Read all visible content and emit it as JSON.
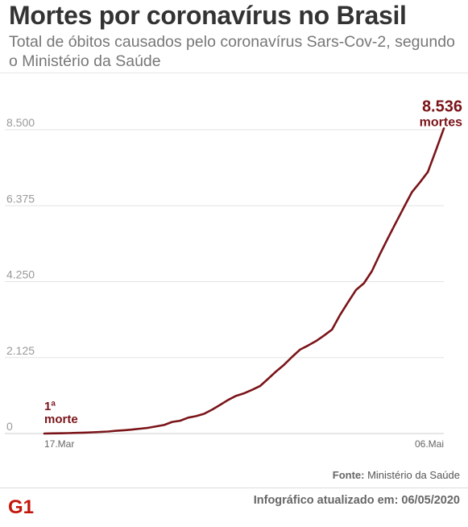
{
  "header": {
    "title": "Mortes por coronavírus no Brasil",
    "subtitle": "Total de óbitos causados pelo coronavírus Sars-Cov-2, segundo o Ministério da Saúde"
  },
  "chart_data": {
    "type": "line",
    "title": "Mortes por coronavírus no Brasil",
    "subtitle": "Total de óbitos causados pelo coronavírus Sars-Cov-2, segundo o Ministério da Saúde",
    "xlabel": "",
    "ylabel": "",
    "x_tick_labels": [
      "17.Mar",
      "06.Mai"
    ],
    "y_tick_labels": [
      "0",
      "2.125",
      "4.250",
      "6.375",
      "8.500"
    ],
    "y_ticks": [
      0,
      2125,
      4250,
      6375,
      8500
    ],
    "ylim": [
      0,
      8500
    ],
    "grid": true,
    "colors": {
      "line": "#7a1419",
      "annotation": "#7a1419"
    },
    "series": [
      {
        "x": [
          "2020-03-17",
          "2020-03-18",
          "2020-03-19",
          "2020-03-20",
          "2020-03-21",
          "2020-03-22",
          "2020-03-23",
          "2020-03-24",
          "2020-03-25",
          "2020-03-26",
          "2020-03-27",
          "2020-03-28",
          "2020-03-29",
          "2020-03-30",
          "2020-03-31",
          "2020-04-01",
          "2020-04-02",
          "2020-04-03",
          "2020-04-04",
          "2020-04-05",
          "2020-04-06",
          "2020-04-07",
          "2020-04-08",
          "2020-04-09",
          "2020-04-10",
          "2020-04-11",
          "2020-04-12",
          "2020-04-13",
          "2020-04-14",
          "2020-04-15",
          "2020-04-16",
          "2020-04-17",
          "2020-04-18",
          "2020-04-19",
          "2020-04-20",
          "2020-04-21",
          "2020-04-22",
          "2020-04-23",
          "2020-04-24",
          "2020-04-25",
          "2020-04-26",
          "2020-04-27",
          "2020-04-28",
          "2020-04-29",
          "2020-04-30",
          "2020-05-01",
          "2020-05-02",
          "2020-05-03",
          "2020-05-04",
          "2020-05-05",
          "2020-05-06"
        ],
        "values": [
          1,
          4,
          7,
          11,
          18,
          25,
          34,
          46,
          57,
          77,
          92,
          111,
          136,
          159,
          201,
          240,
          324,
          359,
          445,
          486,
          553,
          667,
          800,
          941,
          1056,
          1124,
          1223,
          1328,
          1532,
          1736,
          1924,
          2141,
          2347,
          2462,
          2587,
          2741,
          2906,
          3313,
          3670,
          4016,
          4205,
          4543,
          5017,
          5466,
          5901,
          6329,
          6750,
          7025,
          7321,
          7921,
          8536
        ]
      }
    ],
    "annotations": [
      {
        "label_line1": "1ª",
        "label_line2": "morte",
        "date": "2020-03-17",
        "value": 1
      },
      {
        "label_line1": "8.536",
        "label_line2": "mortes",
        "date": "2020-05-06",
        "value": 8536
      }
    ]
  },
  "footer": {
    "source_label": "Fonte:",
    "source_value": "Ministério da Saúde",
    "logo_text": "G1",
    "updated": "Infográfico atualizado em: 06/05/2020"
  }
}
